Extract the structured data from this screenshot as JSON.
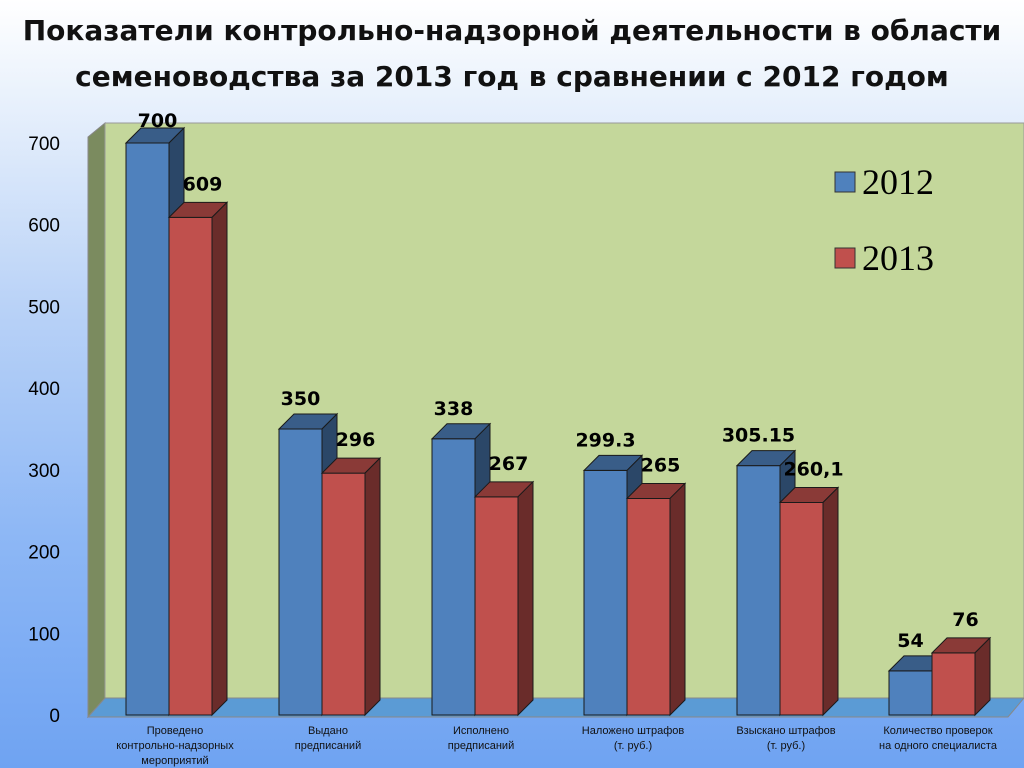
{
  "title": {
    "line1": "Показатели контрольно-надзорной деятельности  в области",
    "line2": "семеноводства за 2013 год в сравнении с 2012 годом"
  },
  "chart_data": {
    "type": "bar",
    "title": "Показатели контрольно-надзорной деятельности  в области семеноводства за 2013 год в сравнении с 2012 годом",
    "xlabel": "",
    "ylabel": "",
    "ylim": [
      0,
      700
    ],
    "yticks": [
      "0",
      "100",
      "200",
      "300",
      "400",
      "500",
      "600",
      "700"
    ],
    "categories": [
      [
        "Проведено",
        "контрольно-надзорных",
        "мероприятий"
      ],
      [
        "Выдано",
        "предписаний"
      ],
      [
        "Исполнено",
        "предписаний"
      ],
      [
        "Наложено штрафов",
        "(т. руб.)"
      ],
      [
        "Взыскано штрафов",
        "(т. руб.)"
      ],
      [
        "Количество проверок",
        "на одного специалиста"
      ]
    ],
    "series": [
      {
        "name": "2012",
        "color": "#4f81bd",
        "values": [
          700,
          350,
          338,
          299.3,
          305.15,
          54
        ],
        "labels": [
          "700",
          "350",
          "338",
          "299.3",
          "305.15",
          "54"
        ]
      },
      {
        "name": "2013",
        "color": "#c0504d",
        "values": [
          609,
          296,
          267,
          265,
          260.1,
          76
        ],
        "labels": [
          "609",
          "296",
          "267",
          "265",
          "260,1",
          "76"
        ]
      }
    ],
    "legend_position": "top-right",
    "grid": false,
    "style": "3d-bar",
    "wall_color": "#c4d79b",
    "floor_color": "#5b9bd5"
  }
}
